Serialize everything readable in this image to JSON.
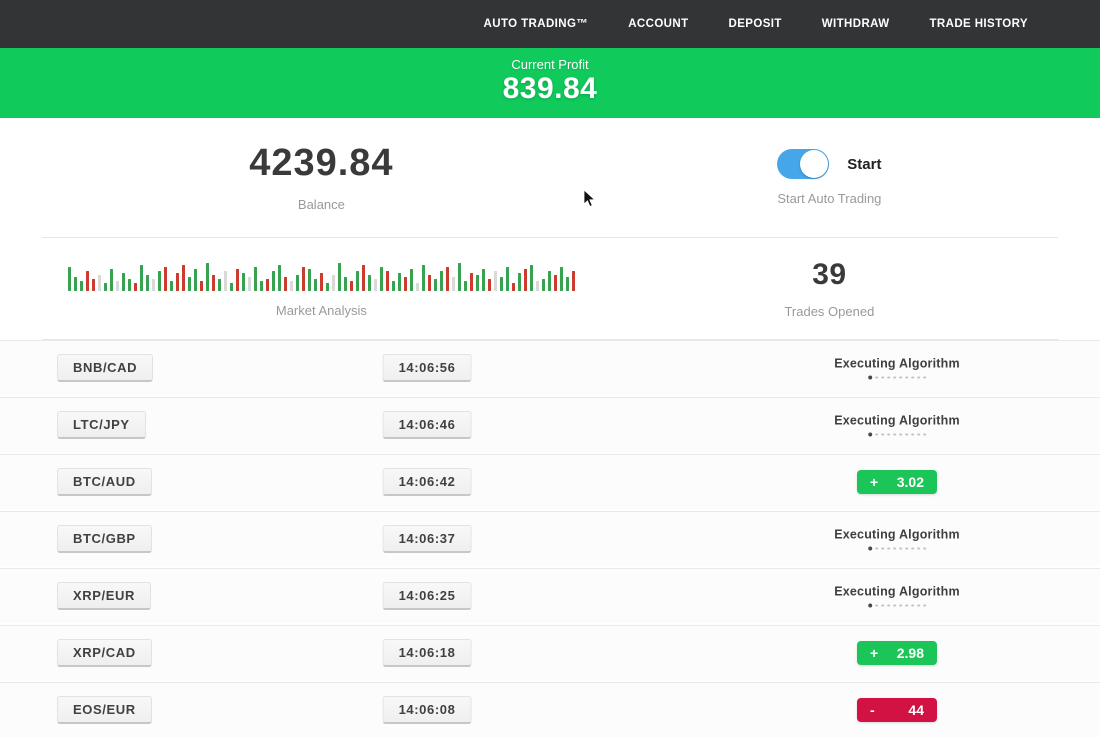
{
  "nav": {
    "items": [
      {
        "label": "AUTO TRADING™"
      },
      {
        "label": "ACCOUNT"
      },
      {
        "label": "DEPOSIT"
      },
      {
        "label": "WITHDRAW"
      },
      {
        "label": "TRADE HISTORY"
      }
    ]
  },
  "profit_banner": {
    "label": "Current Profit",
    "value": "839.84"
  },
  "balance": {
    "value": "4239.84",
    "label": "Balance"
  },
  "auto_trading": {
    "toggle_state": "on",
    "toggle_text": "Start",
    "label": "Start Auto Trading"
  },
  "market_analysis": {
    "label": "Market Analysis",
    "bars": [
      "g24",
      "g14",
      "g10",
      "r20",
      "r12",
      "n16",
      "g8",
      "g22",
      "n10",
      "g18",
      "g12",
      "r8",
      "g26",
      "g16",
      "n12",
      "g20",
      "r24",
      "g10",
      "r18",
      "r26",
      "g14",
      "g22",
      "r10",
      "g28",
      "r16",
      "g12",
      "n20",
      "g8",
      "r22",
      "g18",
      "n14",
      "g24",
      "g10",
      "r12",
      "g20",
      "g26",
      "r14",
      "n10",
      "g16",
      "r24",
      "g22",
      "g12",
      "r18",
      "g8",
      "n16",
      "g28",
      "g14",
      "r10",
      "g20",
      "r26",
      "g16",
      "n12",
      "g24",
      "r20",
      "g10",
      "g18",
      "r14",
      "g22",
      "n8",
      "g26",
      "r16",
      "g12",
      "g20",
      "r24",
      "n14",
      "g28",
      "g10",
      "r18",
      "g16",
      "g22",
      "r12",
      "n20",
      "g14",
      "g24",
      "r8",
      "g18",
      "r22",
      "g26",
      "n10",
      "g12",
      "g20",
      "r16",
      "g24",
      "g14",
      "r20"
    ]
  },
  "trades_opened": {
    "value": "39",
    "label": "Trades Opened"
  },
  "trades": {
    "executing_label": "Executing Algorithm",
    "rows": [
      {
        "pair": "BNB/CAD",
        "time": "14:06:56",
        "status": "executing"
      },
      {
        "pair": "LTC/JPY",
        "time": "14:06:46",
        "status": "executing"
      },
      {
        "pair": "BTC/AUD",
        "time": "14:06:42",
        "status": "profit",
        "sign": "+",
        "value": "3.02"
      },
      {
        "pair": "BTC/GBP",
        "time": "14:06:37",
        "status": "executing"
      },
      {
        "pair": "XRP/EUR",
        "time": "14:06:25",
        "status": "executing"
      },
      {
        "pair": "XRP/CAD",
        "time": "14:06:18",
        "status": "profit",
        "sign": "+",
        "value": "2.98"
      },
      {
        "pair": "EOS/EUR",
        "time": "14:06:08",
        "status": "loss",
        "sign": "-",
        "value": "44"
      }
    ]
  },
  "colors": {
    "banner_green": "#10cb5c",
    "badge_green": "#1cc558",
    "badge_red": "#d11243",
    "toggle_blue": "#45a7e8",
    "nav_bg": "#323436",
    "bar_green": "#37a351",
    "bar_red": "#cc3b2e",
    "bar_gray": "#d9d9d9"
  }
}
